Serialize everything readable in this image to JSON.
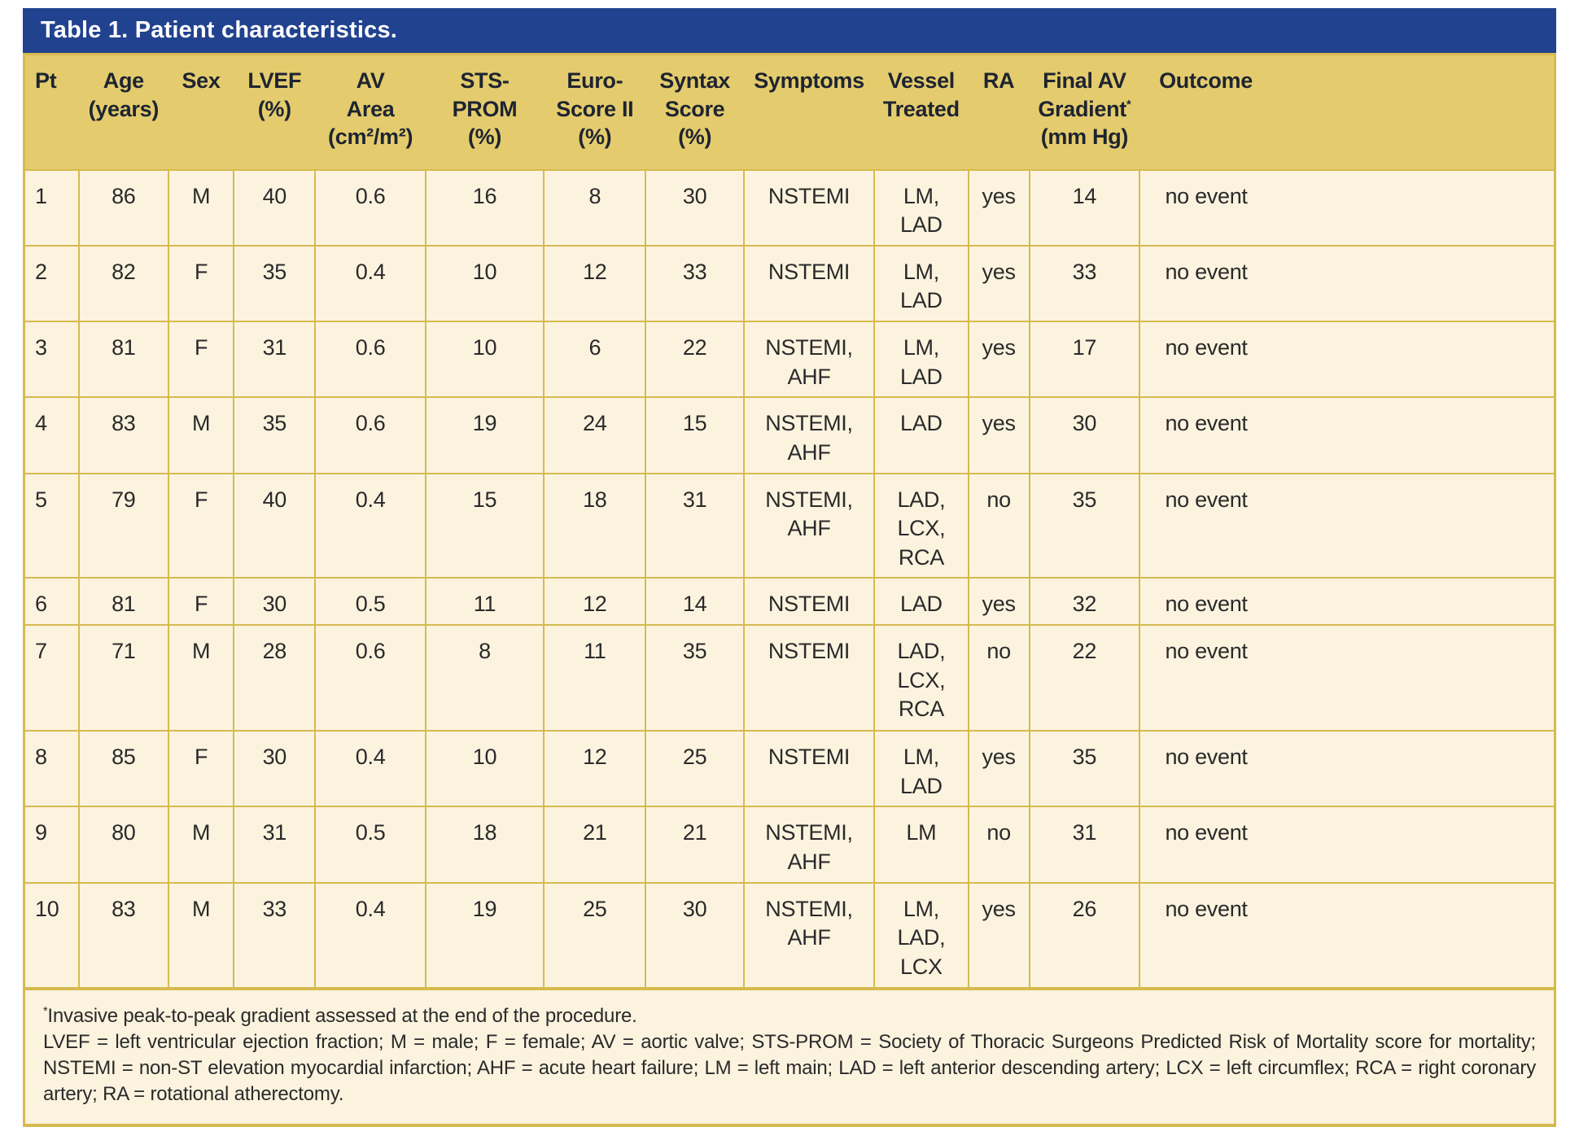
{
  "title": "Table 1. Patient characteristics.",
  "colors": {
    "title_bar_navy": "#21428e",
    "header_gold": "#e4cc6e",
    "border_gold": "#d6ba4f",
    "cell_cream": "#fcf3df",
    "title_text": "#ffffff",
    "body_text": "#2a2a2a"
  },
  "table": {
    "columns": [
      {
        "id": "pt",
        "header": "Pt"
      },
      {
        "id": "age",
        "header": "Age\n(years)"
      },
      {
        "id": "sex",
        "header": "Sex"
      },
      {
        "id": "lvef",
        "header": "LVEF\n(%)"
      },
      {
        "id": "av_area",
        "header": "AV\nArea\n(cm²/m²)"
      },
      {
        "id": "sts_prom",
        "header": "STS-\nPROM\n(%)"
      },
      {
        "id": "euroscore",
        "header": "Euro-\nScore II\n(%)"
      },
      {
        "id": "syntax",
        "header": "Syntax\nScore\n(%)"
      },
      {
        "id": "symptoms",
        "header": "Symptoms"
      },
      {
        "id": "vessel",
        "header": "Vessel\nTreated"
      },
      {
        "id": "ra",
        "header": "RA"
      },
      {
        "id": "gradient",
        "header": "Final AV\nGradient*\n(mm Hg)"
      },
      {
        "id": "outcome",
        "header": "Outcome"
      }
    ],
    "rows": [
      {
        "pt": "1",
        "age": "86",
        "sex": "M",
        "lvef": "40",
        "av_area": "0.6",
        "sts_prom": "16",
        "euroscore": "8",
        "syntax": "30",
        "symptoms": "NSTEMI",
        "vessel": "LM,\nLAD",
        "ra": "yes",
        "gradient": "14",
        "outcome": "no event"
      },
      {
        "pt": "2",
        "age": "82",
        "sex": "F",
        "lvef": "35",
        "av_area": "0.4",
        "sts_prom": "10",
        "euroscore": "12",
        "syntax": "33",
        "symptoms": "NSTEMI",
        "vessel": "LM,\nLAD",
        "ra": "yes",
        "gradient": "33",
        "outcome": "no event"
      },
      {
        "pt": "3",
        "age": "81",
        "sex": "F",
        "lvef": "31",
        "av_area": "0.6",
        "sts_prom": "10",
        "euroscore": "6",
        "syntax": "22",
        "symptoms": "NSTEMI,\nAHF",
        "vessel": "LM,\nLAD",
        "ra": "yes",
        "gradient": "17",
        "outcome": "no event"
      },
      {
        "pt": "4",
        "age": "83",
        "sex": "M",
        "lvef": "35",
        "av_area": "0.6",
        "sts_prom": "19",
        "euroscore": "24",
        "syntax": "15",
        "symptoms": "NSTEMI,\nAHF",
        "vessel": "LAD",
        "ra": "yes",
        "gradient": "30",
        "outcome": "no event"
      },
      {
        "pt": "5",
        "age": "79",
        "sex": "F",
        "lvef": "40",
        "av_area": "0.4",
        "sts_prom": "15",
        "euroscore": "18",
        "syntax": "31",
        "symptoms": "NSTEMI,\nAHF",
        "vessel": "LAD,\nLCX,\nRCA",
        "ra": "no",
        "gradient": "35",
        "outcome": "no event"
      },
      {
        "pt": "6",
        "age": "81",
        "sex": "F",
        "lvef": "30",
        "av_area": "0.5",
        "sts_prom": "11",
        "euroscore": "12",
        "syntax": "14",
        "symptoms": "NSTEMI",
        "vessel": "LAD",
        "ra": "yes",
        "gradient": "32",
        "outcome": "no event"
      },
      {
        "pt": "7",
        "age": "71",
        "sex": "M",
        "lvef": "28",
        "av_area": "0.6",
        "sts_prom": "8",
        "euroscore": "11",
        "syntax": "35",
        "symptoms": "NSTEMI",
        "vessel": "LAD,\nLCX,\nRCA",
        "ra": "no",
        "gradient": "22",
        "outcome": "no event"
      },
      {
        "pt": "8",
        "age": "85",
        "sex": "F",
        "lvef": "30",
        "av_area": "0.4",
        "sts_prom": "10",
        "euroscore": "12",
        "syntax": "25",
        "symptoms": "NSTEMI",
        "vessel": "LM,\nLAD",
        "ra": "yes",
        "gradient": "35",
        "outcome": "no event"
      },
      {
        "pt": "9",
        "age": "80",
        "sex": "M",
        "lvef": "31",
        "av_area": "0.5",
        "sts_prom": "18",
        "euroscore": "21",
        "syntax": "21",
        "symptoms": "NSTEMI,\nAHF",
        "vessel": "LM",
        "ra": "no",
        "gradient": "31",
        "outcome": "no event"
      },
      {
        "pt": "10",
        "age": "83",
        "sex": "M",
        "lvef": "33",
        "av_area": "0.4",
        "sts_prom": "19",
        "euroscore": "25",
        "syntax": "30",
        "symptoms": "NSTEMI,\nAHF",
        "vessel": "LM,\nLAD,\nLCX",
        "ra": "yes",
        "gradient": "26",
        "outcome": "no event"
      }
    ]
  },
  "footnotes": {
    "line1": "*Invasive peak-to-peak gradient assessed at the end of the procedure.",
    "abbreviations": "LVEF = left ventricular ejection fraction; M = male; F = female; AV = aortic valve; STS-PROM = Society of Thoracic Surgeons Predicted Risk of Mortality score for mortality; NSTEMI = non-ST elevation myocardial infarction; AHF = acute heart failure; LM = left main; LAD = left anterior descending artery; LCX = left circumflex; RCA = right coronary artery; RA = rotational atherectomy."
  }
}
